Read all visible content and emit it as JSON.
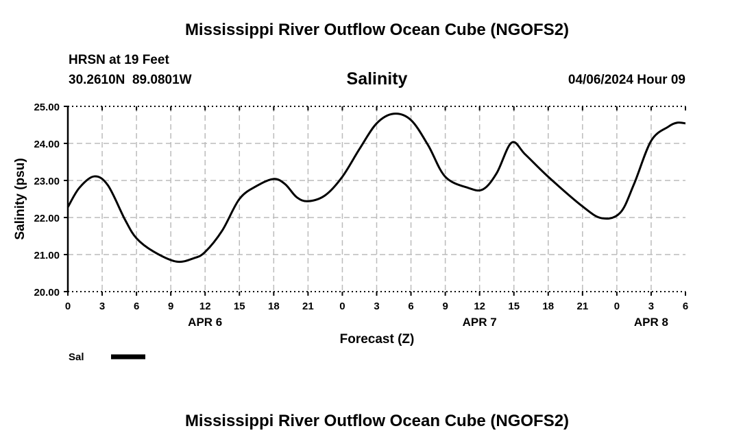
{
  "header": {
    "title": "Mississippi River Outflow Ocean Cube (NGOFS2)",
    "station": "HRSN at 19 Feet",
    "coords": "30.2610N  89.0801W",
    "datetime": "04/06/2024 Hour 09",
    "bottom_title": "Mississippi River Outflow Ocean Cube (NGOFS2)"
  },
  "chart_data": {
    "type": "line",
    "title": "Salinity",
    "xlabel": "Forecast (Z)",
    "ylabel": "Salinity (psu)",
    "ylim": [
      20,
      25
    ],
    "xlim": [
      0,
      54
    ],
    "grid": true,
    "yticks": [
      "20.00",
      "21.00",
      "22.00",
      "23.00",
      "24.00",
      "25.00"
    ],
    "xtick_labels": [
      "0",
      "3",
      "6",
      "9",
      "12",
      "15",
      "18",
      "21",
      "0",
      "3",
      "6",
      "9",
      "12",
      "15",
      "18",
      "21",
      "0",
      "3",
      "6"
    ],
    "date_labels": [
      {
        "label": "APR 6",
        "hour": 12
      },
      {
        "label": "APR 7",
        "hour": 36
      },
      {
        "label": "APR 8",
        "hour": 51
      }
    ],
    "legend": [
      {
        "name": "Sal",
        "color": "#000000"
      }
    ],
    "series": [
      {
        "name": "Sal",
        "color": "#000000",
        "x": [
          0,
          1,
          2.3,
          3.5,
          5,
          6,
          7.5,
          9.5,
          11,
          12,
          13.5,
          15,
          16.5,
          18,
          19,
          20,
          21,
          22.5,
          24,
          25.5,
          27,
          28.5,
          30,
          31.5,
          33,
          35,
          36.3,
          37.5,
          38.8,
          40,
          42,
          45,
          46.7,
          48.3,
          49.5,
          51,
          52.5,
          53.3,
          54
        ],
        "y": [
          22.28,
          22.8,
          23.11,
          22.87,
          21.94,
          21.44,
          21.08,
          20.81,
          20.9,
          21.07,
          21.65,
          22.5,
          22.85,
          23.04,
          22.9,
          22.55,
          22.44,
          22.6,
          23.1,
          23.85,
          24.54,
          24.8,
          24.63,
          23.95,
          23.1,
          22.8,
          22.76,
          23.2,
          24.02,
          23.7,
          23.1,
          22.3,
          21.98,
          22.13,
          22.9,
          24.07,
          24.45,
          24.56,
          24.54
        ]
      }
    ]
  }
}
